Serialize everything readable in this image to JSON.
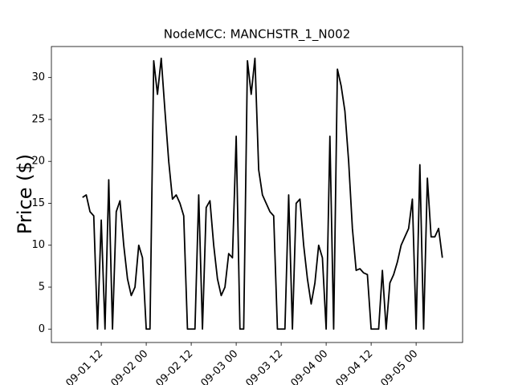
{
  "chart_data": {
    "type": "line",
    "title": "NodeMCC: MANCHSTR_1_N002",
    "y_label": "Price ($)",
    "x": [
      7,
      8,
      9,
      10,
      11,
      12,
      13,
      14,
      15,
      16,
      17,
      18,
      19,
      20,
      21,
      22,
      23,
      24,
      25,
      26,
      27,
      28,
      29,
      30,
      31,
      32,
      33,
      34,
      35,
      36,
      37,
      38,
      39,
      40,
      41,
      42,
      43,
      44,
      45,
      46,
      47,
      48,
      49,
      50,
      51,
      52,
      53,
      54,
      55,
      56,
      57,
      58,
      59,
      60,
      61,
      62,
      63,
      64,
      65,
      66,
      67,
      68,
      69,
      70,
      71,
      72,
      73,
      74,
      75,
      76,
      77,
      78,
      79,
      80,
      81,
      82,
      83,
      84,
      85,
      86,
      87,
      88,
      89,
      90,
      91,
      92,
      93,
      94,
      95,
      96,
      97,
      98,
      99,
      100,
      101,
      102,
      103
    ],
    "series": [
      {
        "name": "Price",
        "color": "#000000",
        "values": [
          15.7,
          16,
          14,
          13.5,
          0,
          13,
          0,
          17.8,
          0,
          14,
          15.3,
          10,
          6,
          4,
          5,
          10,
          8.5,
          0,
          0,
          32,
          28,
          32.3,
          26,
          20,
          15.5,
          16,
          15,
          13.5,
          0,
          0,
          0,
          16,
          0,
          14.5,
          15.3,
          10,
          6,
          4,
          5,
          9,
          8.5,
          23,
          0,
          0,
          32,
          28,
          32.3,
          19,
          16,
          15,
          14,
          13.5,
          0,
          0,
          0,
          16,
          0,
          15,
          15.5,
          10,
          6,
          3,
          5.5,
          10,
          8.5,
          0,
          23,
          0,
          31,
          29,
          26,
          20,
          12,
          7,
          7.2,
          6.7,
          6.5,
          0,
          0,
          0,
          7,
          0,
          5.5,
          6.5,
          8,
          10,
          11,
          12,
          15.5,
          0,
          19.6,
          0,
          18,
          11,
          11,
          12,
          8.5
        ]
      }
    ],
    "xlim": [
      -1.3,
      108.4
    ],
    "xticks": [
      {
        "value": 12,
        "label": "09-01 12"
      },
      {
        "value": 24,
        "label": "09-02 00"
      },
      {
        "value": 36,
        "label": "09-02 12"
      },
      {
        "value": 48,
        "label": "09-03 00"
      },
      {
        "value": 60,
        "label": "09-03 12"
      },
      {
        "value": 72,
        "label": "09-04 00"
      },
      {
        "value": 84,
        "label": "09-04 12"
      },
      {
        "value": 96,
        "label": "09-05 00"
      }
    ],
    "ylim": [
      -1.6,
      33.7
    ],
    "yticks": [
      0,
      5,
      10,
      15,
      20,
      25,
      30
    ],
    "grid": false
  }
}
